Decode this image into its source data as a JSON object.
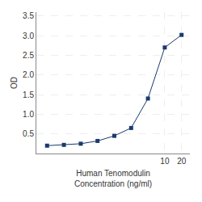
{
  "chart_data": {
    "type": "line",
    "x": [
      0.078,
      0.156,
      0.313,
      0.625,
      1.25,
      2.5,
      5.0,
      10.0,
      20.0
    ],
    "values": [
      0.2,
      0.22,
      0.25,
      0.32,
      0.45,
      0.65,
      1.4,
      2.7,
      3.02
    ],
    "color": "#1a3a6b",
    "marker": "square",
    "xlabel": "Human Tenomodulin\nConcentration (ng/ml)",
    "ylabel": "OD",
    "log": "x",
    "xlim": [
      0.05011872336272722,
      28.183829312644537
    ],
    "xticks": [
      10,
      20
    ],
    "ylim": [
      0.0,
      3.6
    ],
    "yticks": [
      0.5,
      {
        "value": 1.0,
        "label": "1.0"
      },
      1.5,
      {
        "value": 2.0,
        "label": "2.0"
      },
      2.5,
      {
        "value": 3.0,
        "label": "3.0"
      },
      3.5
    ],
    "grid": true
  }
}
